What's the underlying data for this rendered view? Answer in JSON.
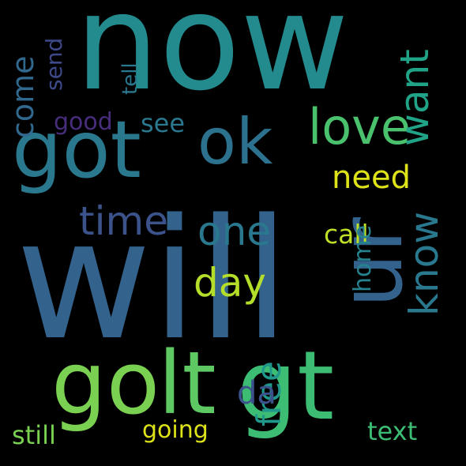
{
  "background": "#000000",
  "words": [
    {
      "text": "now",
      "color": "#238a8d"
    },
    {
      "text": "will",
      "color": "#33638d"
    },
    {
      "text": "got",
      "color": "#2a788e"
    },
    {
      "text": "gt",
      "color": "#3dbc74"
    },
    {
      "text": "go",
      "color": "#7ad151"
    },
    {
      "text": "lt",
      "color": "#5ec962"
    },
    {
      "text": "ok",
      "color": "#2c728e"
    },
    {
      "text": "love",
      "color": "#4ac16d"
    },
    {
      "text": "ur",
      "color": "#33638d"
    },
    {
      "text": "need",
      "color": "#dde318"
    },
    {
      "text": "know",
      "color": "#2a788e"
    },
    {
      "text": "want",
      "color": "#20a386"
    },
    {
      "text": "time",
      "color": "#3b528b"
    },
    {
      "text": "one",
      "color": "#2a788e"
    },
    {
      "text": "day",
      "color": "#b5de2b"
    },
    {
      "text": "free",
      "color": "#1f988b"
    },
    {
      "text": "text",
      "color": "#3dbc74"
    },
    {
      "text": "still",
      "color": "#7ad151"
    },
    {
      "text": "going",
      "color": "#dde318"
    },
    {
      "text": "call",
      "color": "#bddf26"
    },
    {
      "text": "come",
      "color": "#31688e"
    },
    {
      "text": "send",
      "color": "#3e4989"
    },
    {
      "text": "good",
      "color": "#472d7b"
    },
    {
      "text": "see",
      "color": "#2a788e"
    },
    {
      "text": "home",
      "color": "#26828e"
    },
    {
      "text": "da",
      "color": "#3b528b"
    },
    {
      "text": "tell",
      "color": "#2a788e"
    }
  ]
}
